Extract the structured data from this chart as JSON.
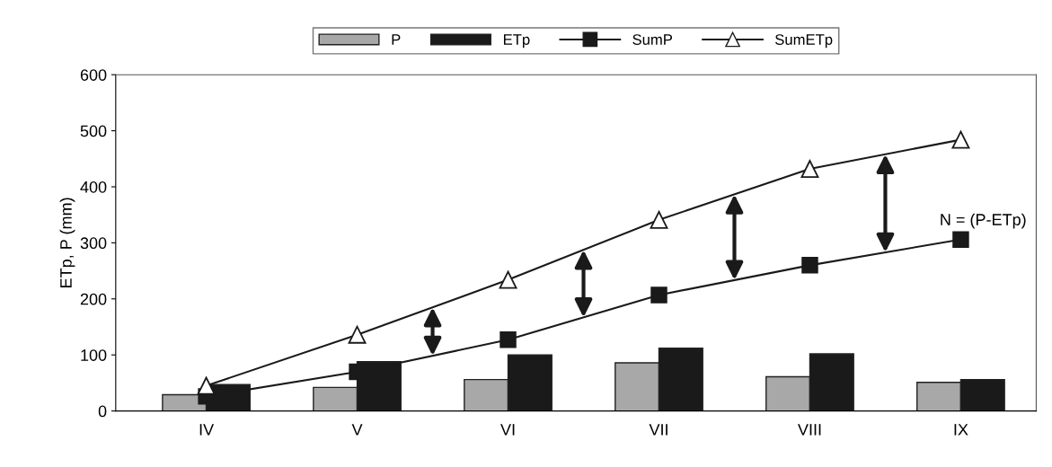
{
  "chart_data": {
    "type": "bar",
    "ylabel": "ETp, P (mm)",
    "categories": [
      "IV",
      "V",
      "VI",
      "VII",
      "VIII",
      "IX"
    ],
    "series": [
      {
        "name": "P",
        "color": "#a8a8a8",
        "values": [
          29,
          42,
          56,
          86,
          61,
          51
        ]
      },
      {
        "name": "ETp",
        "color": "#1a1a1a",
        "values": [
          47,
          88,
          100,
          112,
          102,
          56
        ]
      },
      {
        "name": "SumP",
        "type": "line",
        "color": "#1a1a1a",
        "marker": "square",
        "values": [
          26,
          70,
          127,
          207,
          260,
          306
        ]
      },
      {
        "name": "SumETp",
        "type": "line",
        "color": "#1a1a1a",
        "marker": "triangle",
        "values": [
          45,
          136,
          234,
          341,
          432,
          484
        ]
      }
    ],
    "ylim": [
      0,
      600
    ],
    "yticks": [
      0,
      100,
      200,
      300,
      400,
      500,
      600
    ],
    "annotations": [
      "N = (P-ETp)"
    ],
    "grid": false,
    "legend": "top"
  }
}
